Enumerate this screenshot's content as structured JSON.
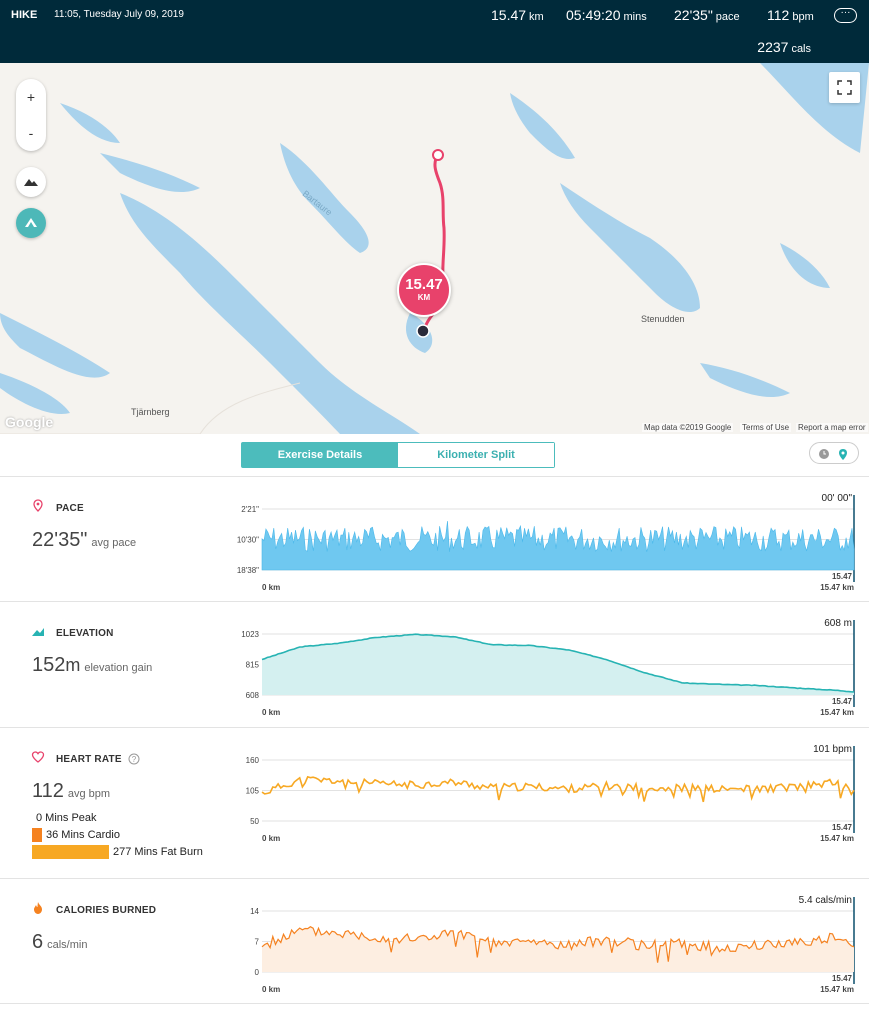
{
  "header": {
    "activity_type": "HIKE",
    "datetime": "11:05, Tuesday July 09, 2019",
    "distance_value": "15.47",
    "distance_unit": "km",
    "duration_value": "05:49:20",
    "duration_unit": "mins",
    "pace_value": "22'35\"",
    "pace_unit": "pace",
    "heart_value": "112",
    "heart_unit": "bpm",
    "calories_value": "2237",
    "calories_unit": "cals",
    "more_label": "···"
  },
  "map": {
    "zoom_in": "+",
    "zoom_out": "-",
    "pin_value": "15.47",
    "pin_unit": "KM",
    "places": [
      "Stenudden",
      "Tjärnberg",
      "Bartaure"
    ],
    "google": "Google",
    "map_data": "Map data ©2019 Google",
    "terms": "Terms of Use",
    "report": "Report a map error",
    "route_color": "#e8426b"
  },
  "tabs": {
    "exercise_details": "Exercise Details",
    "kilometer_split": "Kilometer Split"
  },
  "pace": {
    "title": "PACE",
    "value": "22'35\"",
    "label": "avg pace",
    "readout": "00' 00\"",
    "y_ticks": [
      "2'21\"",
      "10'30\"",
      "18'38\""
    ],
    "x_start": "0 km",
    "x_end": "15.47 km",
    "end_marker": "15.47"
  },
  "elevation": {
    "title": "ELEVATION",
    "value": "152",
    "unit": "m",
    "label": "elevation gain",
    "readout": "608 m",
    "y_ticks": [
      "1023",
      "815",
      "608"
    ],
    "x_start": "0 km",
    "x_end": "15.47 km",
    "end_marker": "15.47"
  },
  "heart": {
    "title": "HEART RATE",
    "value": "112",
    "label": "avg bpm",
    "readout": "101 bpm",
    "y_ticks": [
      "160",
      "105",
      "50"
    ],
    "x_start": "0 km",
    "x_end": "15.47 km",
    "end_marker": "15.47",
    "zones": [
      {
        "label": "0 Mins Peak",
        "minutes": 0
      },
      {
        "label": "36 Mins Cardio",
        "minutes": 36
      },
      {
        "label": "277 Mins Fat Burn",
        "minutes": 277
      }
    ]
  },
  "calories": {
    "title": "CALORIES BURNED",
    "value": "6",
    "label": "cals/min",
    "readout": "5.4 cals/min",
    "y_ticks": [
      "14",
      "7",
      "0"
    ],
    "x_start": "0 km",
    "x_end": "15.47 km",
    "end_marker": "15.47"
  },
  "chart_data": [
    {
      "type": "area",
      "title": "PACE",
      "x_range_km": [
        0,
        15.47
      ],
      "y_ticks": [
        "2'21\"",
        "10'30\"",
        "18'38\""
      ],
      "color": "#6fc8f0",
      "shape": "noisy band mostly between 10'30\" and 18'38\" with one spike near 5 km"
    },
    {
      "type": "area",
      "title": "ELEVATION",
      "x_km": [
        0,
        1,
        2,
        3,
        4,
        5,
        6,
        7,
        8,
        9,
        10,
        11,
        12,
        13,
        14,
        15,
        15.47
      ],
      "y_m": [
        850,
        935,
        960,
        1000,
        1020,
        1005,
        950,
        945,
        915,
        850,
        760,
        690,
        680,
        672,
        655,
        640,
        630
      ],
      "ylim": [
        608,
        1023
      ],
      "color": "#27b3b3"
    },
    {
      "type": "line",
      "title": "HEART RATE",
      "x_km": [
        0,
        1,
        2,
        3,
        4,
        5,
        6,
        7,
        8,
        9,
        10,
        11,
        12,
        13,
        14,
        15,
        15.47
      ],
      "y_bpm": [
        100,
        125,
        122,
        117,
        115,
        120,
        110,
        112,
        108,
        113,
        110,
        110,
        107,
        108,
        112,
        120,
        101
      ],
      "ylim": [
        50,
        160
      ],
      "color": "#f7a823"
    },
    {
      "type": "area",
      "title": "CALORIES BURNED",
      "x_km": [
        0,
        1,
        2,
        3,
        4,
        5,
        6,
        7,
        8,
        9,
        10,
        11,
        12,
        13,
        14,
        15,
        15.47
      ],
      "y_cals": [
        6,
        9.5,
        9,
        8,
        7.5,
        9,
        6.5,
        7,
        6,
        7.5,
        6,
        6.5,
        5.5,
        6,
        7,
        8,
        5.4
      ],
      "ylim": [
        0,
        14
      ],
      "color": "#f58220"
    }
  ]
}
